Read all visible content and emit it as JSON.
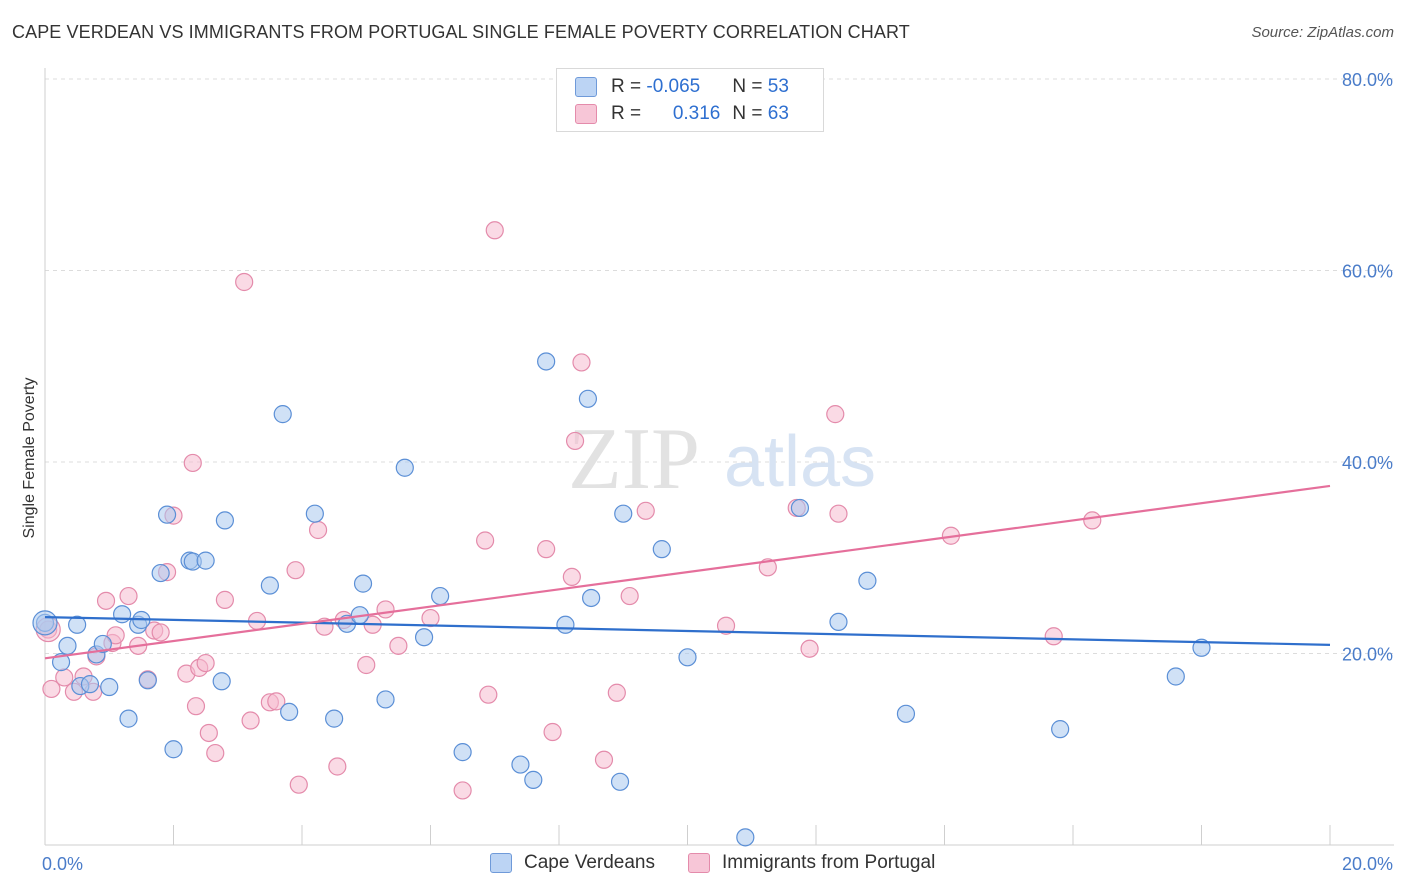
{
  "title": "CAPE VERDEAN VS IMMIGRANTS FROM PORTUGAL SINGLE FEMALE POVERTY CORRELATION CHART",
  "source": "Source: ZipAtlas.com",
  "colors": {
    "blue_fill": "#aac8ef",
    "blue_stroke": "#5b8fd6",
    "blue_line": "#2f6fcc",
    "pink_fill": "#f5bcd0",
    "pink_stroke": "#e48bab",
    "pink_line": "#e56f9b",
    "tick_text": "#4a7cc9"
  },
  "legend": {
    "rows": [
      {
        "r_label": "R = ",
        "r_value": "-0.065",
        "n_label": "N = ",
        "n_value": "53"
      },
      {
        "r_label": "R = ",
        "r_value": "0.316",
        "n_label": "N = ",
        "n_value": "63"
      }
    ]
  },
  "watermark": {
    "zip": "ZIP",
    "atlas": "atlas"
  },
  "chart_data": {
    "type": "scatter",
    "title": "CAPE VERDEAN VS IMMIGRANTS FROM PORTUGAL SINGLE FEMALE POVERTY CORRELATION CHART",
    "xlabel": "",
    "ylabel": "Single Female Poverty",
    "xlim": [
      0,
      20
    ],
    "ylim": [
      0,
      80
    ],
    "x_tick_labels": [
      "0.0%",
      "20.0%"
    ],
    "y_ticks": [
      20,
      40,
      60,
      80
    ],
    "y_tick_labels": [
      "20.0%",
      "40.0%",
      "60.0%",
      "80.0%"
    ],
    "grid": true,
    "legend_placement": "top-center",
    "series": [
      {
        "name": "Cape Verdeans",
        "trend": {
          "x": [
            0,
            20
          ],
          "y": [
            23.8,
            20.9
          ]
        },
        "points": [
          [
            0.0,
            23.2
          ],
          [
            0.25,
            19.1
          ],
          [
            0.35,
            20.8
          ],
          [
            0.5,
            23.0
          ],
          [
            0.55,
            16.6
          ],
          [
            0.7,
            16.8
          ],
          [
            0.8,
            19.9
          ],
          [
            0.9,
            21.0
          ],
          [
            1.0,
            16.5
          ],
          [
            1.2,
            24.1
          ],
          [
            1.3,
            13.2
          ],
          [
            1.45,
            23.0
          ],
          [
            1.5,
            23.5
          ],
          [
            1.6,
            17.2
          ],
          [
            1.8,
            28.4
          ],
          [
            1.9,
            34.5
          ],
          [
            2.0,
            10.0
          ],
          [
            2.25,
            29.7
          ],
          [
            2.3,
            29.6
          ],
          [
            2.5,
            29.7
          ],
          [
            2.75,
            17.1
          ],
          [
            2.8,
            33.9
          ],
          [
            3.5,
            27.1
          ],
          [
            3.7,
            45.0
          ],
          [
            3.8,
            13.9
          ],
          [
            4.2,
            34.6
          ],
          [
            4.5,
            13.2
          ],
          [
            4.7,
            23.1
          ],
          [
            4.9,
            24.0
          ],
          [
            4.95,
            27.3
          ],
          [
            5.3,
            15.2
          ],
          [
            5.6,
            39.4
          ],
          [
            5.9,
            21.7
          ],
          [
            6.15,
            26.0
          ],
          [
            6.5,
            9.7
          ],
          [
            7.4,
            8.4
          ],
          [
            7.6,
            6.8
          ],
          [
            7.8,
            50.5
          ],
          [
            8.1,
            23.0
          ],
          [
            8.45,
            46.6
          ],
          [
            8.5,
            25.8
          ],
          [
            8.95,
            6.6
          ],
          [
            9.0,
            34.6
          ],
          [
            9.6,
            30.9
          ],
          [
            10.0,
            19.6
          ],
          [
            10.9,
            0.8
          ],
          [
            11.75,
            35.2
          ],
          [
            12.35,
            23.3
          ],
          [
            12.8,
            27.6
          ],
          [
            13.4,
            13.7
          ],
          [
            15.8,
            12.1
          ],
          [
            17.6,
            17.6
          ],
          [
            18.0,
            20.6
          ]
        ]
      },
      {
        "name": "Immigrants from Portugal",
        "trend": {
          "x": [
            0,
            20
          ],
          "y": [
            19.5,
            37.5
          ]
        },
        "points": [
          [
            0.05,
            22.5
          ],
          [
            0.1,
            16.3
          ],
          [
            0.3,
            17.5
          ],
          [
            0.45,
            16.0
          ],
          [
            0.6,
            17.6
          ],
          [
            0.75,
            16.0
          ],
          [
            0.8,
            19.7
          ],
          [
            0.95,
            25.5
          ],
          [
            1.05,
            21.1
          ],
          [
            1.1,
            21.9
          ],
          [
            1.3,
            26.0
          ],
          [
            1.45,
            20.8
          ],
          [
            1.6,
            17.3
          ],
          [
            1.7,
            22.4
          ],
          [
            1.8,
            22.2
          ],
          [
            1.9,
            28.5
          ],
          [
            2.0,
            34.4
          ],
          [
            2.2,
            17.9
          ],
          [
            2.3,
            39.9
          ],
          [
            2.35,
            14.5
          ],
          [
            2.4,
            18.5
          ],
          [
            2.5,
            19.0
          ],
          [
            2.55,
            11.7
          ],
          [
            2.65,
            9.6
          ],
          [
            2.8,
            25.6
          ],
          [
            3.1,
            58.8
          ],
          [
            3.2,
            13.0
          ],
          [
            3.3,
            23.4
          ],
          [
            3.5,
            14.9
          ],
          [
            3.6,
            15.0
          ],
          [
            3.9,
            28.7
          ],
          [
            3.95,
            6.3
          ],
          [
            4.25,
            32.9
          ],
          [
            4.35,
            22.8
          ],
          [
            4.55,
            8.2
          ],
          [
            4.65,
            23.5
          ],
          [
            5.0,
            18.8
          ],
          [
            5.1,
            23.0
          ],
          [
            5.3,
            24.6
          ],
          [
            5.5,
            20.8
          ],
          [
            6.0,
            23.7
          ],
          [
            6.5,
            5.7
          ],
          [
            6.85,
            31.8
          ],
          [
            6.9,
            15.7
          ],
          [
            7.0,
            64.2
          ],
          [
            7.8,
            30.9
          ],
          [
            7.9,
            11.8
          ],
          [
            8.2,
            28.0
          ],
          [
            8.25,
            42.2
          ],
          [
            8.35,
            50.4
          ],
          [
            8.7,
            8.9
          ],
          [
            8.9,
            15.9
          ],
          [
            9.1,
            26.0
          ],
          [
            9.35,
            34.9
          ],
          [
            10.6,
            22.9
          ],
          [
            11.25,
            29.0
          ],
          [
            11.7,
            35.2
          ],
          [
            11.9,
            20.5
          ],
          [
            12.3,
            45.0
          ],
          [
            12.35,
            34.6
          ],
          [
            14.1,
            32.3
          ],
          [
            15.7,
            21.8
          ],
          [
            16.3,
            33.9
          ]
        ]
      }
    ]
  },
  "bottom_legend": {
    "items": [
      "Cape Verdeans",
      "Immigrants from Portugal"
    ]
  }
}
